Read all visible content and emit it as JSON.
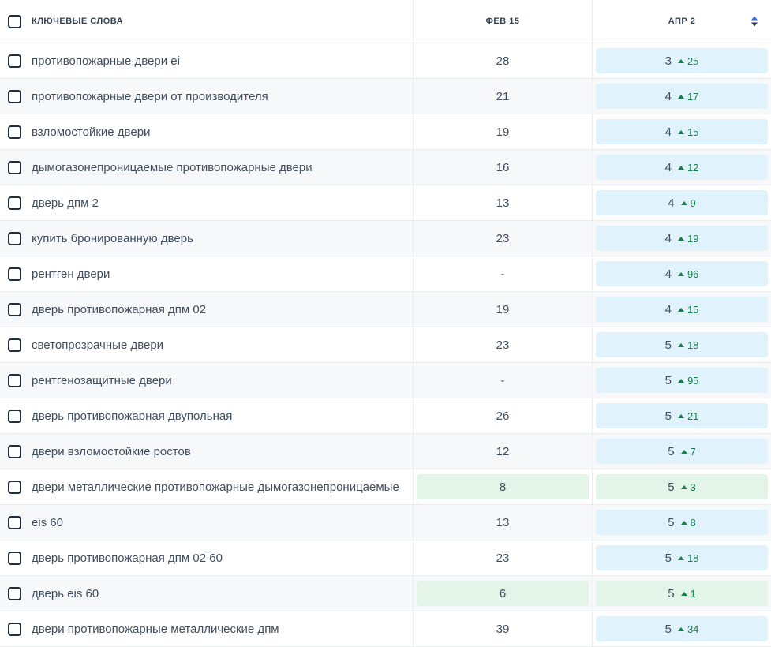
{
  "table": {
    "header": {
      "keywords": "КЛЮЧЕВЫЕ СЛОВА",
      "prev_date": "ФЕВ 15",
      "current_date": "АПР 2"
    },
    "rows": [
      {
        "keyword": "противопожарные двери ei",
        "prev": "28",
        "prev_highlight": "none",
        "position": "3",
        "change": "25",
        "highlight": "blue"
      },
      {
        "keyword": "противопожарные двери от производителя",
        "prev": "21",
        "prev_highlight": "none",
        "position": "4",
        "change": "17",
        "highlight": "blue"
      },
      {
        "keyword": "взломостойкие двери",
        "prev": "19",
        "prev_highlight": "none",
        "position": "4",
        "change": "15",
        "highlight": "blue"
      },
      {
        "keyword": "дымогазонепроницаемые противопожарные двери",
        "prev": "16",
        "prev_highlight": "none",
        "position": "4",
        "change": "12",
        "highlight": "blue"
      },
      {
        "keyword": "дверь дпм 2",
        "prev": "13",
        "prev_highlight": "none",
        "position": "4",
        "change": "9",
        "highlight": "blue"
      },
      {
        "keyword": "купить бронированную дверь",
        "prev": "23",
        "prev_highlight": "none",
        "position": "4",
        "change": "19",
        "highlight": "blue"
      },
      {
        "keyword": "рентген двери",
        "prev": "-",
        "prev_highlight": "none",
        "position": "4",
        "change": "96",
        "highlight": "blue"
      },
      {
        "keyword": "дверь противопожарная дпм 02",
        "prev": "19",
        "prev_highlight": "none",
        "position": "4",
        "change": "15",
        "highlight": "blue"
      },
      {
        "keyword": "светопрозрачные двери",
        "prev": "23",
        "prev_highlight": "none",
        "position": "5",
        "change": "18",
        "highlight": "blue"
      },
      {
        "keyword": "рентгенозащитные двери",
        "prev": "-",
        "prev_highlight": "none",
        "position": "5",
        "change": "95",
        "highlight": "blue"
      },
      {
        "keyword": "дверь противопожарная двупольная",
        "prev": "26",
        "prev_highlight": "none",
        "position": "5",
        "change": "21",
        "highlight": "blue"
      },
      {
        "keyword": "двери взломостойкие ростов",
        "prev": "12",
        "prev_highlight": "none",
        "position": "5",
        "change": "7",
        "highlight": "blue"
      },
      {
        "keyword": "двери металлические противопожарные дымогазонепроницаемые",
        "prev": "8",
        "prev_highlight": "green",
        "position": "5",
        "change": "3",
        "highlight": "green"
      },
      {
        "keyword": "eis 60",
        "prev": "13",
        "prev_highlight": "none",
        "position": "5",
        "change": "8",
        "highlight": "blue"
      },
      {
        "keyword": "дверь противопожарная дпм 02 60",
        "prev": "23",
        "prev_highlight": "none",
        "position": "5",
        "change": "18",
        "highlight": "blue"
      },
      {
        "keyword": "дверь eis 60",
        "prev": "6",
        "prev_highlight": "green",
        "position": "5",
        "change": "1",
        "highlight": "green"
      },
      {
        "keyword": "двери противопожарные металлические дпм",
        "prev": "39",
        "prev_highlight": "none",
        "position": "5",
        "change": "34",
        "highlight": "blue"
      }
    ]
  },
  "icons": {
    "sort": "sort-arrows-icon",
    "change_up": "triangle-up-icon",
    "checkbox": "checkbox-unchecked"
  },
  "colors": {
    "highlight_blue": "#e0f2fc",
    "highlight_green": "#e3f4e9",
    "change_green": "#17814a",
    "sort_active_blue": "#2f6ce0",
    "sort_inactive_dark": "#26323f",
    "alt_row_bg": "#f7f8fa",
    "border": "#ecedf0",
    "text": "#414e5e",
    "header_text": "#2f3e52"
  }
}
